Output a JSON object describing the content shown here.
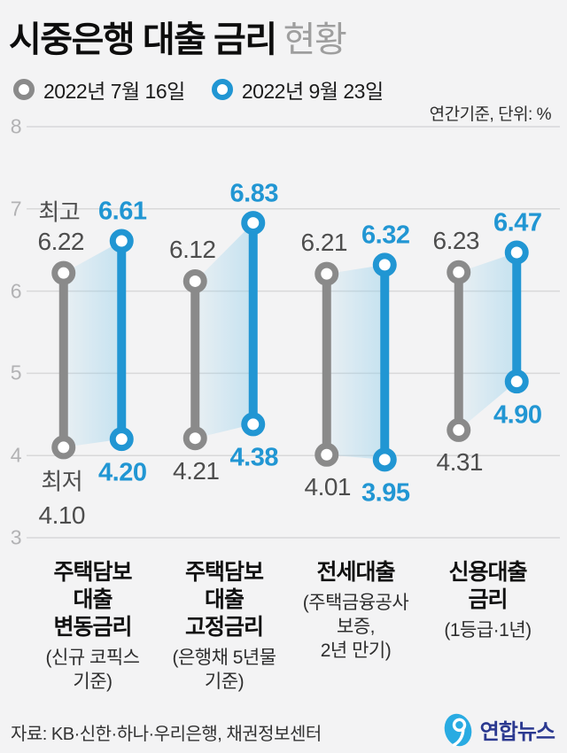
{
  "header": {
    "title_strong": "시중은행 대출 금리",
    "title_light": "현황"
  },
  "unit_note": "연간기준, 단위: %",
  "footer": {
    "source": "자료: KB·신한·하나·우리은행, 채권정보센터",
    "logo_text": "연합뉴스"
  },
  "colors": {
    "background": "#f3f3f4",
    "grid": "#d8d8d9",
    "gray_series": "#8a8a8a",
    "blue_series": "#2196d3",
    "band": "#8ccdeb",
    "logo_blue": "#29abe2",
    "logo_navy": "#2b3990"
  },
  "chart_data": {
    "type": "dumbbell",
    "title": "시중은행 대출 금리 현황",
    "ylabel": "",
    "ylim": [
      3,
      8
    ],
    "yticks": [
      8,
      7,
      6,
      5,
      4,
      3
    ],
    "grid": true,
    "legend_position": "top",
    "annotations": {
      "high": "최고",
      "low": "최저"
    },
    "series": [
      {
        "name": "2022년 7월 16일",
        "color": "#8a8a8a"
      },
      {
        "name": "2022년 9월 23일",
        "color": "#2196d3"
      }
    ],
    "groups": [
      {
        "label_lines": [
          "주택담보",
          "대출",
          "변동금리"
        ],
        "sublabel_lines": [
          "(신규 코픽스",
          "기준)"
        ],
        "points": [
          {
            "high": 6.22,
            "low": 4.1
          },
          {
            "high": 6.61,
            "low": 4.2
          }
        ]
      },
      {
        "label_lines": [
          "주택담보",
          "대출",
          "고정금리"
        ],
        "sublabel_lines": [
          "(은행채 5년물",
          "기준)"
        ],
        "points": [
          {
            "high": 6.12,
            "low": 4.21
          },
          {
            "high": 6.83,
            "low": 4.38
          }
        ]
      },
      {
        "label_lines": [
          "전세대출"
        ],
        "sublabel_lines": [
          "(주택금융공사",
          "보증,",
          "2년 만기)"
        ],
        "points": [
          {
            "high": 6.21,
            "low": 4.01
          },
          {
            "high": 6.32,
            "low": 3.95
          }
        ]
      },
      {
        "label_lines": [
          "신용대출",
          "금리"
        ],
        "sublabel_lines": [
          "(1등급·1년)"
        ],
        "points": [
          {
            "high": 6.23,
            "low": 4.31
          },
          {
            "high": 6.47,
            "low": 4.9
          }
        ]
      }
    ]
  }
}
